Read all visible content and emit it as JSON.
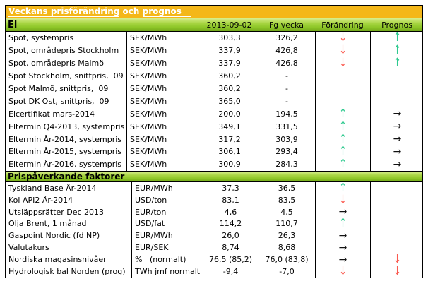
{
  "title": {
    "part1": "Veckans prisförändring",
    "part2": " och ",
    "part3": "prognos"
  },
  "colors": {
    "title_bar_bg": "#F4B719",
    "section_bar_green": "#9CCE34",
    "up_arrow": "#2EC98F",
    "down_arrow": "#FA5A50",
    "flat_arrow": "#111111"
  },
  "icons": {
    "up": "↑",
    "down": "↓",
    "flat": "→"
  },
  "sections": [
    {
      "name": "El",
      "columns": {
        "date": "2013-09-02",
        "prev": "Fg vecka",
        "change": "Förändring",
        "forecast": "Prognos"
      },
      "rows": [
        {
          "label": "Spot, systempris",
          "unit": "SEK/MWh",
          "current": "303,3",
          "previous": "326,2",
          "change": "down",
          "forecast": "up"
        },
        {
          "label": "Spot, områdepris Stockholm",
          "unit": "SEK/MWh",
          "current": "337,9",
          "previous": "426,8",
          "change": "down",
          "forecast": "up"
        },
        {
          "label": "Spot, områdepris Malmö",
          "unit": "SEK/MWh",
          "current": "337,9",
          "previous": "426,8",
          "change": "down",
          "forecast": "up"
        },
        {
          "label": "Spot Stockholm, snittpris,  09",
          "unit": "SEK/MWh",
          "current": "360,2",
          "previous": "-",
          "change": "none",
          "forecast": "none"
        },
        {
          "label": "Spot Malmö, snittpris,  09",
          "unit": "SEK/MWh",
          "current": "360,2",
          "previous": "-",
          "change": "none",
          "forecast": "none"
        },
        {
          "label": "Spot DK Öst, snittpris,  09",
          "unit": "SEK/MWh",
          "current": "365,0",
          "previous": "-",
          "change": "none",
          "forecast": "none"
        },
        {
          "label": "Elcertifikat mars-2014",
          "unit": "SEK/MWh",
          "current": "200,0",
          "previous": "194,5",
          "change": "up",
          "forecast": "flat"
        },
        {
          "label": "Eltermin Q4-2013, systempris",
          "unit": "SEK/MWh",
          "current": "349,1",
          "previous": "331,5",
          "change": "up",
          "forecast": "flat"
        },
        {
          "label": "Eltermin År-2014, systempris",
          "unit": "SEK/MWh",
          "current": "317,2",
          "previous": "303,9",
          "change": "up",
          "forecast": "flat"
        },
        {
          "label": "Eltermin År-2015, systempris",
          "unit": "SEK/MWh",
          "current": "306,1",
          "previous": "293,4",
          "change": "up",
          "forecast": "flat"
        },
        {
          "label": "Eltermin År-2016, systempris",
          "unit": "SEK/MWh",
          "current": "300,9",
          "previous": "284,3",
          "change": "up",
          "forecast": "flat"
        }
      ]
    },
    {
      "name": "Prispåverkande faktorer",
      "rows": [
        {
          "label": "Tyskland Base År-2014",
          "unit": "EUR/MWh",
          "current": "37,3",
          "previous": "36,5",
          "change": "up",
          "forecast": "none"
        },
        {
          "label": "Kol API2 År-2014",
          "unit": "USD/ton",
          "current": "83,1",
          "previous": "83,5",
          "change": "down",
          "forecast": "none"
        },
        {
          "label": "Utsläppsrätter Dec 2013",
          "unit": "EUR/ton",
          "current": "4,6",
          "previous": "4,5",
          "change": "flat",
          "forecast": "none"
        },
        {
          "label": "Olja Brent, 1 månad",
          "unit": "USD/fat",
          "current": "114,2",
          "previous": "110,7",
          "change": "up",
          "forecast": "none"
        },
        {
          "label": "Gaspoint Nordic (fd NP)",
          "unit": "EUR/MWh",
          "current": "26,0",
          "previous": "26,3",
          "change": "flat",
          "forecast": "none"
        },
        {
          "label": "Valutakurs",
          "unit": "EUR/SEK",
          "current": "8,74",
          "previous": "8,68",
          "change": "flat",
          "forecast": "none"
        },
        {
          "label": "Nordiska magasinsnivåer",
          "unit": "%   (normalt)",
          "current": "76,5 (85,2)",
          "previous": "76,0 (83,8)",
          "change": "flat",
          "forecast": "down"
        },
        {
          "label": "Hydrologisk bal Norden (prog)",
          "unit": "TWh jmf normalt",
          "current": "-9,4",
          "previous": "-7,0",
          "change": "down",
          "forecast": "down"
        }
      ]
    }
  ]
}
